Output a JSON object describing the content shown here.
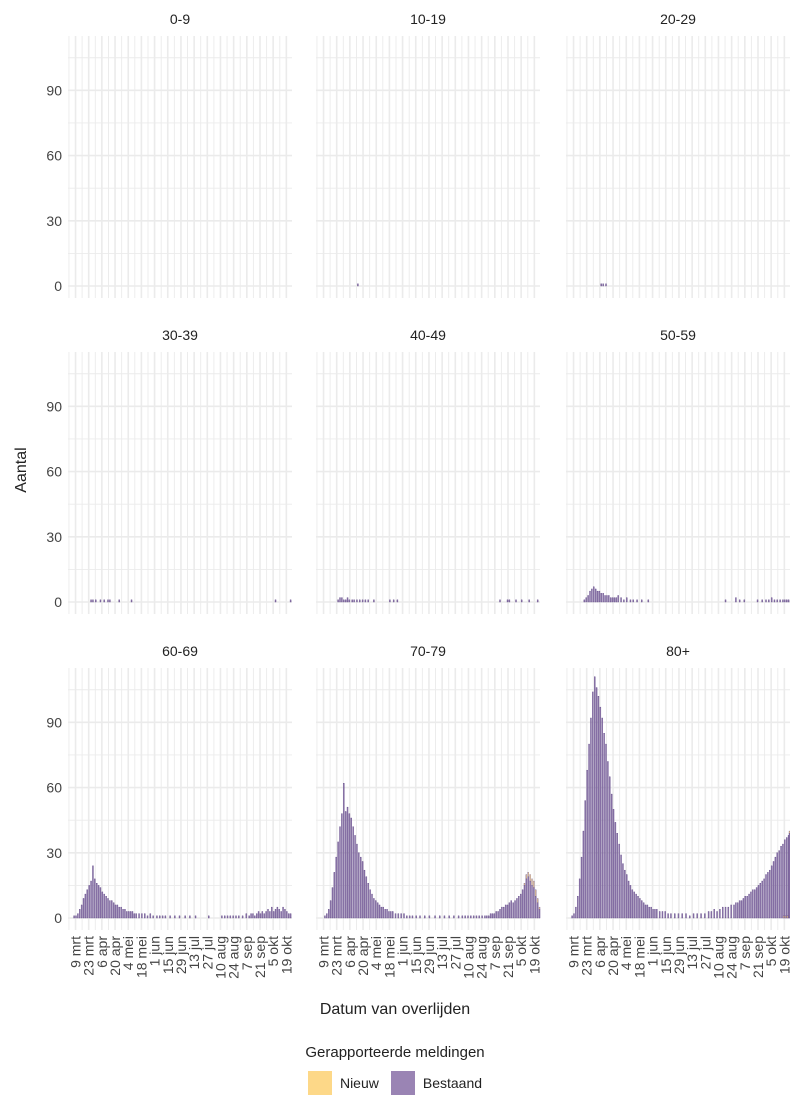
{
  "chart_data": {
    "type": "bar",
    "stacked": true,
    "facet_by": "leeftijdsgroep",
    "xlabel": "Datum van overlijden",
    "ylabel": "Aantal",
    "ylim": [
      0,
      115
    ],
    "yticks": [
      0,
      30,
      60,
      90
    ],
    "x_start": "2020-03-01",
    "x_end": "2020-10-25",
    "xticks": [
      "9 mrt",
      "23 mrt",
      "6 apr",
      "20 apr",
      "4 mei",
      "18 mei",
      "1 jun",
      "15 jun",
      "29 jun",
      "13 jul",
      "27 jul",
      "10 aug",
      "24 aug",
      "7 sep",
      "21 sep",
      "5 okt",
      "19 okt"
    ],
    "grid": true,
    "legend": {
      "title": "Gerapporteerde meldingen",
      "position": "bottom",
      "entries": [
        {
          "name": "Nieuw",
          "color": "#fdd888"
        },
        {
          "name": "Bestaand",
          "color": "#9a84b4"
        }
      ]
    },
    "series_colors": {
      "Bestaand": "#9a84b4",
      "Nieuw": "#fdd888",
      "edge": "#5e4585"
    },
    "panels": [
      {
        "title": "0-9",
        "bestaand": {},
        "nieuw": {}
      },
      {
        "title": "10-19",
        "bestaand": {
          "2020-04-14": 1
        },
        "nieuw": {}
      },
      {
        "title": "20-29",
        "bestaand": {
          "2020-04-07": 1,
          "2020-04-09": 1,
          "2020-04-12": 1
        },
        "nieuw": {}
      },
      {
        "title": "30-39",
        "bestaand": {
          "2020-03-25": 1,
          "2020-03-27": 1,
          "2020-03-30": 1,
          "2020-04-04": 1,
          "2020-04-08": 1,
          "2020-04-12": 1,
          "2020-04-14": 1,
          "2020-04-24": 1,
          "2020-05-07": 1,
          "2020-10-07": 1,
          "2020-10-23": 1
        },
        "nieuw": {}
      },
      {
        "title": "40-49",
        "bestaand": {
          "2020-03-24": 1,
          "2020-03-26": 2,
          "2020-03-28": 2,
          "2020-03-30": 1,
          "2020-04-01": 1,
          "2020-04-03": 2,
          "2020-04-05": 1,
          "2020-04-08": 1,
          "2020-04-10": 1,
          "2020-04-13": 1,
          "2020-04-16": 1,
          "2020-04-19": 1,
          "2020-04-22": 1,
          "2020-04-25": 1,
          "2020-05-01": 1,
          "2020-05-18": 1,
          "2020-05-22": 1,
          "2020-05-26": 1,
          "2020-09-12": 1,
          "2020-09-20": 1,
          "2020-09-22": 1,
          "2020-09-29": 1,
          "2020-10-05": 1,
          "2020-10-13": 1,
          "2020-10-22": 1
        },
        "nieuw": {}
      },
      {
        "title": "50-59",
        "bestaand": {
          "2020-03-20": 1,
          "2020-03-22": 2,
          "2020-03-24": 3,
          "2020-03-26": 5,
          "2020-03-28": 6,
          "2020-03-30": 7,
          "2020-04-01": 6,
          "2020-04-03": 5,
          "2020-04-05": 5,
          "2020-04-07": 4,
          "2020-04-09": 4,
          "2020-04-11": 3,
          "2020-04-13": 3,
          "2020-04-15": 3,
          "2020-04-17": 2,
          "2020-04-19": 2,
          "2020-04-21": 2,
          "2020-04-23": 2,
          "2020-04-25": 3,
          "2020-04-28": 2,
          "2020-05-01": 1,
          "2020-05-04": 2,
          "2020-05-08": 1,
          "2020-05-11": 1,
          "2020-05-15": 1,
          "2020-05-20": 1,
          "2020-05-27": 1,
          "2020-08-17": 1,
          "2020-08-28": 2,
          "2020-09-01": 1,
          "2020-09-06": 1,
          "2020-09-20": 1,
          "2020-09-25": 1,
          "2020-09-29": 1,
          "2020-10-02": 1,
          "2020-10-05": 2,
          "2020-10-08": 1,
          "2020-10-11": 1,
          "2020-10-14": 1,
          "2020-10-17": 1,
          "2020-10-19": 1,
          "2020-10-21": 1,
          "2020-10-23": 1
        },
        "nieuw": {}
      },
      {
        "title": "60-69",
        "bestaand": {
          "2020-03-07": 1,
          "2020-03-09": 1,
          "2020-03-11": 2,
          "2020-03-13": 4,
          "2020-03-15": 6,
          "2020-03-17": 9,
          "2020-03-19": 11,
          "2020-03-21": 13,
          "2020-03-23": 15,
          "2020-03-25": 17,
          "2020-03-27": 24,
          "2020-03-29": 18,
          "2020-03-31": 16,
          "2020-04-02": 15,
          "2020-04-04": 14,
          "2020-04-06": 12,
          "2020-04-08": 11,
          "2020-04-10": 10,
          "2020-04-12": 9,
          "2020-04-14": 8,
          "2020-04-16": 8,
          "2020-04-18": 7,
          "2020-04-20": 6,
          "2020-04-22": 6,
          "2020-04-24": 5,
          "2020-04-26": 5,
          "2020-04-28": 4,
          "2020-04-30": 4,
          "2020-05-02": 3,
          "2020-05-04": 3,
          "2020-05-06": 3,
          "2020-05-08": 3,
          "2020-05-10": 2,
          "2020-05-12": 2,
          "2020-05-15": 2,
          "2020-05-18": 2,
          "2020-05-21": 2,
          "2020-05-24": 1,
          "2020-05-27": 2,
          "2020-05-30": 1,
          "2020-06-03": 1,
          "2020-06-06": 1,
          "2020-06-09": 1,
          "2020-06-12": 1,
          "2020-06-17": 1,
          "2020-06-22": 1,
          "2020-06-27": 1,
          "2020-07-03": 1,
          "2020-07-08": 1,
          "2020-07-14": 1,
          "2020-07-28": 1,
          "2020-08-11": 1,
          "2020-08-14": 1,
          "2020-08-17": 1,
          "2020-08-20": 1,
          "2020-08-23": 1,
          "2020-08-26": 1,
          "2020-08-29": 1,
          "2020-09-02": 1,
          "2020-09-06": 2,
          "2020-09-09": 1,
          "2020-09-11": 2,
          "2020-09-13": 2,
          "2020-09-15": 1,
          "2020-09-17": 2,
          "2020-09-19": 3,
          "2020-09-21": 2,
          "2020-09-23": 3,
          "2020-09-25": 2,
          "2020-09-27": 3,
          "2020-09-29": 4,
          "2020-10-01": 3,
          "2020-10-03": 5,
          "2020-10-05": 3,
          "2020-10-07": 4,
          "2020-10-09": 5,
          "2020-10-11": 4,
          "2020-10-13": 3,
          "2020-10-15": 5,
          "2020-10-17": 4,
          "2020-10-19": 3,
          "2020-10-21": 2,
          "2020-10-23": 2
        },
        "nieuw": {}
      },
      {
        "title": "70-79",
        "bestaand": {
          "2020-03-10": 1,
          "2020-03-12": 2,
          "2020-03-14": 4,
          "2020-03-16": 8,
          "2020-03-18": 14,
          "2020-03-20": 21,
          "2020-03-22": 28,
          "2020-03-24": 35,
          "2020-03-26": 42,
          "2020-03-28": 48,
          "2020-03-30": 62,
          "2020-04-01": 49,
          "2020-04-03": 51,
          "2020-04-05": 48,
          "2020-04-07": 46,
          "2020-04-09": 42,
          "2020-04-11": 38,
          "2020-04-13": 34,
          "2020-04-15": 30,
          "2020-04-17": 28,
          "2020-04-19": 26,
          "2020-04-21": 22,
          "2020-04-23": 19,
          "2020-04-25": 16,
          "2020-04-27": 13,
          "2020-04-29": 11,
          "2020-05-01": 9,
          "2020-05-03": 8,
          "2020-05-05": 7,
          "2020-05-07": 6,
          "2020-05-09": 5,
          "2020-05-11": 5,
          "2020-05-13": 4,
          "2020-05-15": 4,
          "2020-05-17": 3,
          "2020-05-19": 3,
          "2020-05-21": 3,
          "2020-05-24": 2,
          "2020-05-27": 2,
          "2020-05-30": 2,
          "2020-06-02": 2,
          "2020-06-05": 1,
          "2020-06-08": 1,
          "2020-06-11": 1,
          "2020-06-15": 1,
          "2020-06-19": 1,
          "2020-06-24": 1,
          "2020-06-29": 1,
          "2020-07-05": 1,
          "2020-07-10": 1,
          "2020-07-15": 1,
          "2020-07-20": 1,
          "2020-07-25": 1,
          "2020-07-30": 1,
          "2020-08-03": 1,
          "2020-08-06": 1,
          "2020-08-09": 1,
          "2020-08-12": 1,
          "2020-08-15": 1,
          "2020-08-18": 1,
          "2020-08-21": 1,
          "2020-08-24": 1,
          "2020-08-27": 1,
          "2020-08-29": 1,
          "2020-08-31": 1,
          "2020-09-02": 2,
          "2020-09-04": 2,
          "2020-09-06": 2,
          "2020-09-08": 3,
          "2020-09-10": 3,
          "2020-09-12": 4,
          "2020-09-14": 5,
          "2020-09-16": 5,
          "2020-09-18": 6,
          "2020-09-20": 6,
          "2020-09-22": 7,
          "2020-09-24": 8,
          "2020-09-26": 7,
          "2020-09-28": 8,
          "2020-09-30": 9,
          "2020-10-02": 10,
          "2020-10-04": 11,
          "2020-10-06": 13,
          "2020-10-08": 15,
          "2020-10-10": 18,
          "2020-10-12": 19,
          "2020-10-14": 17,
          "2020-10-16": 15,
          "2020-10-18": 14,
          "2020-10-20": 10,
          "2020-10-22": 7,
          "2020-10-24": 4
        },
        "nieuw": {
          "2020-10-08": 1,
          "2020-10-10": 2,
          "2020-10-12": 2,
          "2020-10-14": 3,
          "2020-10-16": 3,
          "2020-10-18": 3,
          "2020-10-20": 3,
          "2020-10-22": 2,
          "2020-10-24": 1
        }
      },
      {
        "title": "80+",
        "bestaand": {
          "2020-03-07": 1,
          "2020-03-09": 2,
          "2020-03-11": 5,
          "2020-03-13": 10,
          "2020-03-15": 18,
          "2020-03-17": 28,
          "2020-03-19": 40,
          "2020-03-21": 54,
          "2020-03-23": 68,
          "2020-03-25": 80,
          "2020-03-27": 92,
          "2020-03-29": 104,
          "2020-03-31": 111,
          "2020-04-02": 106,
          "2020-04-04": 102,
          "2020-04-06": 97,
          "2020-04-08": 92,
          "2020-04-10": 85,
          "2020-04-12": 80,
          "2020-04-14": 72,
          "2020-04-16": 65,
          "2020-04-18": 57,
          "2020-04-20": 50,
          "2020-04-22": 44,
          "2020-04-24": 39,
          "2020-04-26": 34,
          "2020-04-28": 29,
          "2020-04-30": 25,
          "2020-05-02": 22,
          "2020-05-04": 20,
          "2020-05-06": 17,
          "2020-05-08": 15,
          "2020-05-10": 13,
          "2020-05-12": 12,
          "2020-05-14": 11,
          "2020-05-16": 10,
          "2020-05-18": 9,
          "2020-05-20": 8,
          "2020-05-22": 7,
          "2020-05-24": 6,
          "2020-05-26": 6,
          "2020-05-28": 5,
          "2020-05-30": 5,
          "2020-06-01": 4,
          "2020-06-03": 4,
          "2020-06-05": 4,
          "2020-06-08": 3,
          "2020-06-11": 3,
          "2020-06-14": 3,
          "2020-06-17": 2,
          "2020-06-20": 2,
          "2020-06-24": 2,
          "2020-06-28": 2,
          "2020-07-02": 2,
          "2020-07-06": 2,
          "2020-07-10": 1,
          "2020-07-14": 2,
          "2020-07-18": 2,
          "2020-07-22": 2,
          "2020-07-26": 2,
          "2020-07-30": 3,
          "2020-08-02": 3,
          "2020-08-05": 4,
          "2020-08-08": 3,
          "2020-08-11": 4,
          "2020-08-14": 5,
          "2020-08-17": 5,
          "2020-08-20": 5,
          "2020-08-23": 6,
          "2020-08-26": 6,
          "2020-08-28": 7,
          "2020-08-30": 7,
          "2020-09-01": 8,
          "2020-09-03": 8,
          "2020-09-05": 9,
          "2020-09-07": 10,
          "2020-09-09": 10,
          "2020-09-11": 11,
          "2020-09-13": 12,
          "2020-09-15": 13,
          "2020-09-17": 13,
          "2020-09-19": 14,
          "2020-09-21": 15,
          "2020-09-23": 16,
          "2020-09-25": 17,
          "2020-09-27": 18,
          "2020-09-29": 20,
          "2020-10-01": 21,
          "2020-10-03": 22,
          "2020-10-05": 24,
          "2020-10-07": 26,
          "2020-10-09": 28,
          "2020-10-11": 30,
          "2020-10-13": 31,
          "2020-10-15": 33,
          "2020-10-17": 34,
          "2020-10-19": 36,
          "2020-10-21": 37,
          "2020-10-23": 38,
          "2020-10-24": 39
        },
        "nieuw": {
          "2020-10-18": 1,
          "2020-10-20": 1,
          "2020-10-22": 1,
          "2020-10-24": 1
        }
      }
    ]
  }
}
